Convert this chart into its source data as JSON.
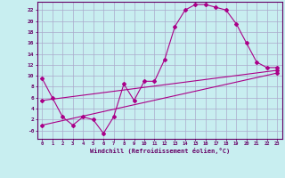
{
  "title": "",
  "xlabel": "Windchill (Refroidissement éolien,°C)",
  "bg_color": "#c8eef0",
  "grid_color": "#aaaacc",
  "line_color": "#aa0088",
  "spine_color": "#660066",
  "tick_color": "#660066",
  "label_color": "#660066",
  "xlim": [
    -0.5,
    23.5
  ],
  "ylim": [
    -1.5,
    23.5
  ],
  "xticks": [
    0,
    1,
    2,
    3,
    4,
    5,
    6,
    7,
    8,
    9,
    10,
    11,
    12,
    13,
    14,
    15,
    16,
    17,
    18,
    19,
    20,
    21,
    22,
    23
  ],
  "yticks": [
    0,
    2,
    4,
    6,
    8,
    10,
    12,
    14,
    16,
    18,
    20,
    22
  ],
  "series1_x": [
    0,
    1,
    2,
    3,
    4,
    5,
    6,
    7,
    8,
    9,
    10,
    11,
    12,
    13,
    14,
    15,
    16,
    17,
    18,
    19,
    20,
    21,
    22,
    23
  ],
  "series1_y": [
    9.5,
    6.0,
    2.5,
    1.0,
    2.5,
    2.0,
    -0.5,
    2.5,
    8.5,
    5.5,
    9.0,
    9.0,
    13.0,
    19.0,
    22.0,
    23.0,
    23.0,
    22.5,
    22.0,
    19.5,
    16.0,
    12.5,
    11.5,
    11.5
  ],
  "series2_x": [
    0,
    23
  ],
  "series2_y": [
    5.5,
    11.0
  ],
  "series3_x": [
    0,
    23
  ],
  "series3_y": [
    1.0,
    10.5
  ]
}
